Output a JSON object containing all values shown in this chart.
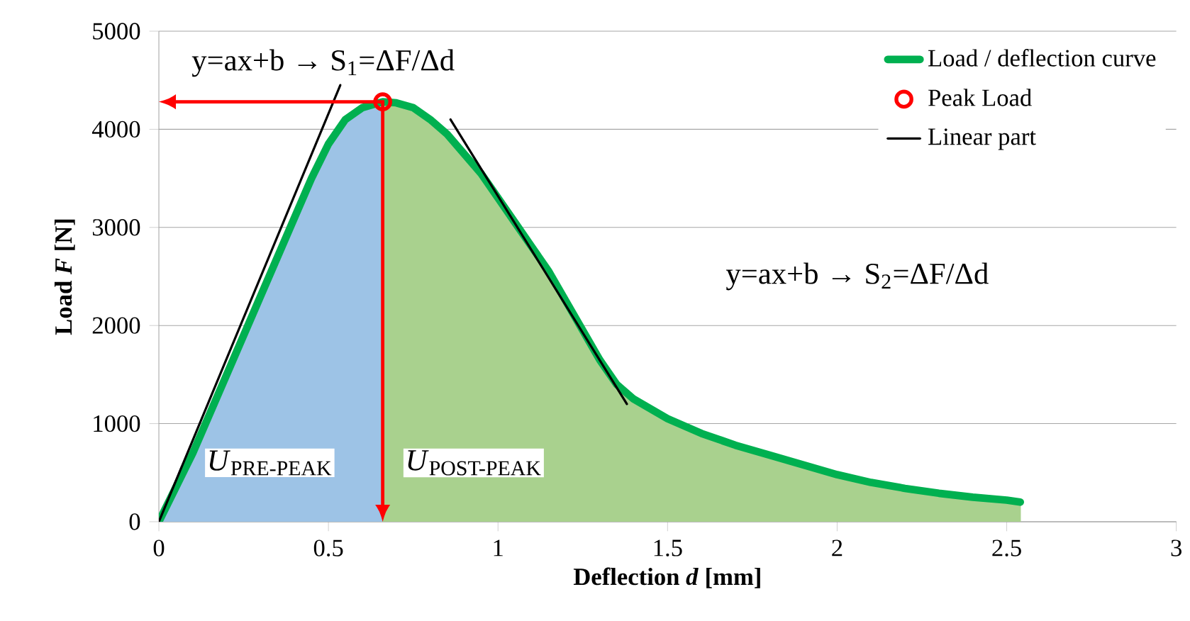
{
  "chart_data": {
    "type": "line",
    "xlabel": "Deflection *d* [mm]",
    "ylabel": "Load *F* [N]",
    "xlim": [
      0,
      3
    ],
    "ylim": [
      0,
      5000
    ],
    "xticks": [
      0,
      0.5,
      1,
      1.5,
      2,
      2.5,
      3
    ],
    "yticks": [
      0,
      1000,
      2000,
      3000,
      4000,
      5000
    ],
    "grid": "y",
    "legend": "top right",
    "series": [
      {
        "type": "area",
        "color": "#9dc3e6",
        "x": [
          0,
          0.1,
          0.2,
          0.3,
          0.4,
          0.45,
          0.5,
          0.55,
          0.6,
          0.66
        ],
        "values": [
          0,
          700,
          1500,
          2300,
          3100,
          3500,
          3850,
          4100,
          4220,
          4280
        ]
      },
      {
        "type": "area",
        "color": "#a9d18e",
        "x": [
          0.66,
          0.7,
          0.75,
          0.8,
          0.85,
          0.9,
          0.95,
          1.0,
          1.05,
          1.1,
          1.15,
          1.2,
          1.25,
          1.3,
          1.35,
          1.4,
          1.5,
          1.6,
          1.7,
          1.8,
          1.9,
          2.0,
          2.1,
          2.2,
          2.3,
          2.4,
          2.5,
          2.54
        ],
        "values": [
          4280,
          4270,
          4220,
          4100,
          3950,
          3750,
          3550,
          3300,
          3050,
          2800,
          2550,
          2250,
          1950,
          1650,
          1400,
          1250,
          1050,
          900,
          780,
          680,
          580,
          480,
          400,
          340,
          290,
          250,
          220,
          200
        ]
      },
      {
        "name": "Load / deflection curve",
        "color": "#00b050",
        "x": [
          0,
          0.1,
          0.2,
          0.3,
          0.4,
          0.45,
          0.5,
          0.55,
          0.6,
          0.66,
          0.7,
          0.75,
          0.8,
          0.85,
          0.9,
          0.95,
          1.0,
          1.05,
          1.1,
          1.15,
          1.2,
          1.25,
          1.3,
          1.35,
          1.4,
          1.5,
          1.6,
          1.7,
          1.8,
          1.9,
          2.0,
          2.1,
          2.2,
          2.3,
          2.4,
          2.5,
          2.54
        ],
        "values": [
          0,
          700,
          1500,
          2300,
          3100,
          3500,
          3850,
          4100,
          4220,
          4280,
          4270,
          4220,
          4100,
          3950,
          3750,
          3550,
          3300,
          3050,
          2800,
          2550,
          2250,
          1950,
          1650,
          1400,
          1250,
          1050,
          900,
          780,
          680,
          580,
          480,
          400,
          340,
          290,
          250,
          220,
          200
        ]
      },
      {
        "type": "scatter",
        "name": "Peak Load",
        "color": "#ff0000",
        "marker": "circle",
        "x": [
          0.66
        ],
        "values": [
          4280
        ]
      },
      {
        "name": "Linear part",
        "color": "#000000",
        "x": [
          0,
          0.535
        ],
        "values": [
          0,
          4450
        ]
      },
      {
        "color": "#000000",
        "x": [
          0.86,
          1.38
        ],
        "values": [
          4100,
          1200
        ]
      }
    ],
    "annotations": [
      "y=ax+b → S$_{1}$=ΔF/Δd",
      "y=ax+b → S$_{2}$=ΔF/Δd",
      "*U*$_{PRE-PEAK}$",
      "*U*$_{POST-PEAK}$"
    ]
  }
}
